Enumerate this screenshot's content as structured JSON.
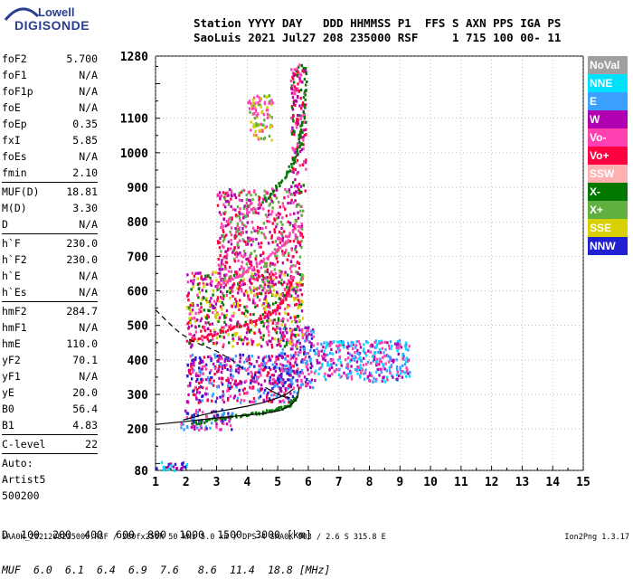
{
  "logo": {
    "top": "Lowell",
    "bottom": "DIGISONDE"
  },
  "header": {
    "line1": "Station YYYY DAY   DDD HHMMSS P1  FFS S AXN PPS IGA PS",
    "line2": "SaoLuis 2021 Jul27 208 235000 RSF     1 715 100 00- 11"
  },
  "params": [
    {
      "label": "foF2",
      "value": "5.700"
    },
    {
      "label": "foF1",
      "value": "N/A"
    },
    {
      "label": "foF1p",
      "value": "N/A"
    },
    {
      "label": "foE",
      "value": "N/A"
    },
    {
      "label": "foEp",
      "value": "0.35"
    },
    {
      "label": "fxI",
      "value": "5.85"
    },
    {
      "label": "foEs",
      "value": "N/A"
    },
    {
      "label": "fmin",
      "value": "2.10"
    },
    {
      "sep": true
    },
    {
      "label": "MUF(D)",
      "value": "18.81"
    },
    {
      "label": "M(D)",
      "value": "3.30"
    },
    {
      "label": "D",
      "value": "N/A"
    },
    {
      "sep": true
    },
    {
      "label": "h`F",
      "value": "230.0"
    },
    {
      "label": "h`F2",
      "value": "230.0"
    },
    {
      "label": "h`E",
      "value": "N/A"
    },
    {
      "label": "h`Es",
      "value": "N/A"
    },
    {
      "sep": true
    },
    {
      "label": "hmF2",
      "value": "284.7"
    },
    {
      "label": "hmF1",
      "value": "N/A"
    },
    {
      "label": "hmE",
      "value": "110.0"
    },
    {
      "label": "yF2",
      "value": "70.1"
    },
    {
      "label": "yF1",
      "value": "N/A"
    },
    {
      "label": "yE",
      "value": "20.0"
    },
    {
      "label": "B0",
      "value": "56.4"
    },
    {
      "label": "B1",
      "value": "4.83"
    },
    {
      "sep": true
    },
    {
      "label": "C-level",
      "value": "22"
    },
    {
      "sep": true
    },
    {
      "text": "Auto:"
    },
    {
      "text": "Artist5"
    },
    {
      "text": "500200"
    }
  ],
  "legend": [
    {
      "label": "NoVal",
      "color": "#a0a0a0"
    },
    {
      "label": "NNE",
      "color": "#00e0ff"
    },
    {
      "label": "E",
      "color": "#3aa0ff"
    },
    {
      "label": "W",
      "color": "#b000b0"
    },
    {
      "label": "Vo-",
      "color": "#ff40b0"
    },
    {
      "label": "Vo+",
      "color": "#ff0040"
    },
    {
      "label": "SSW",
      "color": "#ffb0b0"
    },
    {
      "label": "X-",
      "color": "#007800"
    },
    {
      "label": "X+",
      "color": "#60b040"
    },
    {
      "label": "SSE",
      "color": "#d8d000"
    },
    {
      "label": "NNW",
      "color": "#2020d0"
    }
  ],
  "chart_data": {
    "type": "scatter",
    "xlim": [
      1,
      15
    ],
    "ylim": [
      80,
      1280
    ],
    "x_ticks": [
      1,
      2,
      3,
      4,
      5,
      6,
      7,
      8,
      9,
      10,
      11,
      12,
      13,
      14,
      15
    ],
    "y_ticks": [
      80,
      200,
      300,
      400,
      500,
      600,
      700,
      800,
      900,
      1000,
      1100,
      1280
    ],
    "grid": true,
    "legend_position": "right",
    "series": [
      {
        "color": "#000000",
        "points": [
          [
            1.0,
            213
          ],
          [
            2.0,
            222
          ],
          [
            3.0,
            232
          ],
          [
            4.0,
            240
          ],
          [
            4.6,
            246
          ],
          [
            5.0,
            252
          ],
          [
            5.3,
            262
          ],
          [
            5.5,
            275
          ],
          [
            5.65,
            292
          ],
          [
            5.7,
            320
          ]
        ]
      },
      {
        "color": "#000000",
        "points": [
          [
            1.0,
            545
          ],
          [
            1.4,
            510
          ],
          [
            1.8,
            478
          ],
          [
            2.2,
            455
          ],
          [
            2.6,
            440
          ],
          [
            3.0,
            425
          ],
          [
            3.5,
            400
          ],
          [
            3.9,
            370
          ]
        ]
      },
      {
        "color": "#000000",
        "points": [
          [
            1.9,
            226
          ],
          [
            2.5,
            240
          ],
          [
            3.0,
            250
          ],
          [
            3.5,
            258
          ],
          [
            4.0,
            266
          ],
          [
            4.5,
            276
          ],
          [
            5.0,
            290
          ],
          [
            5.3,
            302
          ],
          [
            5.5,
            315
          ]
        ]
      },
      {
        "color": "#000000",
        "points": [
          [
            4.6,
            320
          ],
          [
            4.9,
            305
          ],
          [
            5.2,
            293
          ],
          [
            5.4,
            290
          ]
        ]
      }
    ],
    "echo_regions": [
      {
        "x": [
          1.0,
          2.0
        ],
        "y": [
          80,
          110
        ],
        "colors": [
          "#2020d0",
          "#b000b0",
          "#00e0ff"
        ]
      },
      {
        "x": [
          1.8,
          3.5
        ],
        "y": [
          200,
          260
        ],
        "colors": [
          "#b000b0",
          "#2020d0",
          "#ff40b0",
          "#3aa0ff"
        ]
      },
      {
        "x": [
          2.0,
          5.6
        ],
        "y": [
          280,
          420
        ],
        "colors": [
          "#b000b0",
          "#2020d0",
          "#ff40b0",
          "#3aa0ff",
          "#ff0040"
        ]
      },
      {
        "x": [
          5.0,
          6.2
        ],
        "y": [
          320,
          500
        ],
        "colors": [
          "#b000b0",
          "#2020d0",
          "#ff40b0",
          "#3aa0ff"
        ]
      },
      {
        "x": [
          6.2,
          9.3
        ],
        "y": [
          340,
          460
        ],
        "colors": [
          "#3aa0ff",
          "#b000b0",
          "#00e0ff",
          "#ff40b0"
        ]
      },
      {
        "x": [
          2.0,
          5.8
        ],
        "y": [
          440,
          660
        ],
        "colors": [
          "#ff40b0",
          "#ff0040",
          "#b000b0",
          "#007800",
          "#d8d000"
        ]
      },
      {
        "x": [
          3.0,
          5.8
        ],
        "y": [
          600,
          900
        ],
        "colors": [
          "#ff40b0",
          "#ff0040",
          "#b000b0",
          "#60b040"
        ]
      },
      {
        "x": [
          5.4,
          5.9
        ],
        "y": [
          880,
          1260
        ],
        "colors": [
          "#007800",
          "#ff0040",
          "#ff40b0",
          "#b000b0"
        ]
      },
      {
        "x": [
          4.0,
          4.8
        ],
        "y": [
          1040,
          1170
        ],
        "colors": [
          "#d8d000",
          "#60b040",
          "#ff40b0"
        ]
      }
    ],
    "traces": [
      {
        "color": "#007800",
        "points": [
          [
            2.2,
            220
          ],
          [
            3.0,
            232
          ],
          [
            4.0,
            244
          ],
          [
            4.8,
            256
          ],
          [
            5.3,
            270
          ],
          [
            5.6,
            295
          ]
        ]
      },
      {
        "color": "#ff0040",
        "points": [
          [
            2.0,
            460
          ],
          [
            3.0,
            480
          ],
          [
            4.0,
            510
          ],
          [
            4.8,
            540
          ],
          [
            5.2,
            580
          ],
          [
            5.5,
            640
          ]
        ]
      },
      {
        "color": "#ff40b0",
        "points": [
          [
            3.0,
            620
          ],
          [
            3.8,
            650
          ],
          [
            4.5,
            690
          ],
          [
            5.2,
            740
          ],
          [
            5.6,
            800
          ]
        ]
      },
      {
        "color": "#007800",
        "points": [
          [
            4.5,
            860
          ],
          [
            5.2,
            930
          ],
          [
            5.6,
            1000
          ],
          [
            5.8,
            1100
          ],
          [
            5.9,
            1250
          ]
        ]
      }
    ]
  },
  "d_table": {
    "row1_label": "D",
    "row1_values": [
      "100",
      "200",
      "400",
      "600",
      "800",
      "1000",
      "1500",
      "3000"
    ],
    "row1_unit": "[km]",
    "row2_label": "MUF",
    "row2_values": [
      "6.0",
      "6.1",
      "6.4",
      "6.9",
      "7.6",
      "8.6",
      "11.4",
      "18.8"
    ],
    "row2_unit": "[MHz]"
  },
  "footer": {
    "left": "SAA0K_2021208235000.RSF / 280fx256h 50 kHz 5.0 km / DPS-4 SAA0K 903 / 2.6 S 315.8 E",
    "right": "Ion2Png 1.3.17"
  }
}
